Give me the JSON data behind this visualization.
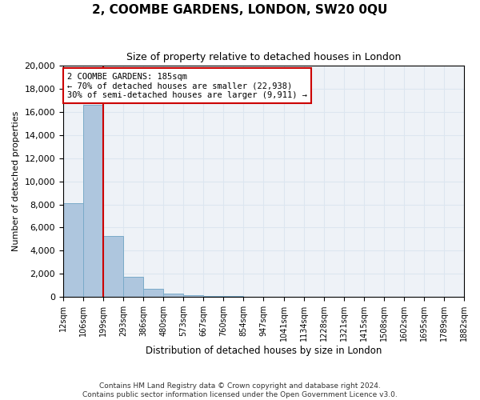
{
  "title": "2, COOMBE GARDENS, LONDON, SW20 0QU",
  "subtitle": "Size of property relative to detached houses in London",
  "xlabel": "Distribution of detached houses by size in London",
  "ylabel": "Number of detached properties",
  "bar_color": "#aec6de",
  "bar_edge_color": "#7aaac8",
  "grid_color": "#dce6f0",
  "background_color": "#eef2f7",
  "annotation_box_color": "#cc0000",
  "property_line_color": "#cc0000",
  "property_label": "2 COOMBE GARDENS: 185sqm",
  "annotation_line1": "← 70% of detached houses are smaller (22,938)",
  "annotation_line2": "30% of semi-detached houses are larger (9,911) →",
  "bin_labels": [
    "12sqm",
    "106sqm",
    "199sqm",
    "293sqm",
    "386sqm",
    "480sqm",
    "573sqm",
    "667sqm",
    "760sqm",
    "854sqm",
    "947sqm",
    "1041sqm",
    "1134sqm",
    "1228sqm",
    "1321sqm",
    "1415sqm",
    "1508sqm",
    "1602sqm",
    "1695sqm",
    "1789sqm",
    "1882sqm"
  ],
  "bar_heights": [
    8100,
    16600,
    5300,
    1750,
    700,
    320,
    160,
    100,
    50,
    20,
    5,
    2,
    1,
    0,
    0,
    0,
    0,
    0,
    0,
    0
  ],
  "ylim": [
    0,
    20000
  ],
  "yticks": [
    0,
    2000,
    4000,
    6000,
    8000,
    10000,
    12000,
    14000,
    16000,
    18000,
    20000
  ],
  "property_line_x": 1.5,
  "footer_line1": "Contains HM Land Registry data © Crown copyright and database right 2024.",
  "footer_line2": "Contains public sector information licensed under the Open Government Licence v3.0."
}
